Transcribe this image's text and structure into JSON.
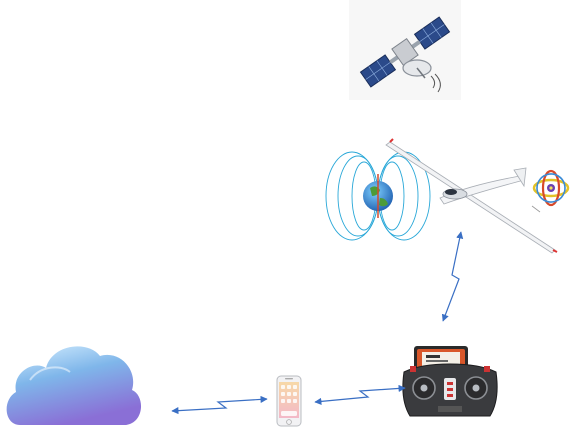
{
  "diagram": {
    "nodes": [
      {
        "id": "satellite",
        "icon": "satellite-icon"
      },
      {
        "id": "magnetic-field-earth",
        "icon": "earth-magnetic-field-icon"
      },
      {
        "id": "glider-aircraft",
        "icon": "glider-aircraft-icon"
      },
      {
        "id": "gyroscope",
        "icon": "gyroscope-icon"
      },
      {
        "id": "rc-transmitter",
        "icon": "rc-transmitter-icon"
      },
      {
        "id": "smartphone",
        "icon": "smartphone-icon"
      },
      {
        "id": "cloud",
        "icon": "cloud-icon"
      }
    ],
    "links": [
      {
        "from": "glider-aircraft",
        "to": "rc-transmitter",
        "style": "wireless-bidirectional"
      },
      {
        "from": "rc-transmitter",
        "to": "smartphone",
        "style": "wireless-bidirectional"
      },
      {
        "from": "smartphone",
        "to": "cloud",
        "style": "wireless-bidirectional"
      }
    ],
    "colors": {
      "link": "#3a6fc4",
      "cloud_top": "#cfe9fb",
      "cloud_bottom": "#7f72d6",
      "satellite_panel": "#2b4a8a",
      "earth_field": "#2aa8d8"
    }
  }
}
